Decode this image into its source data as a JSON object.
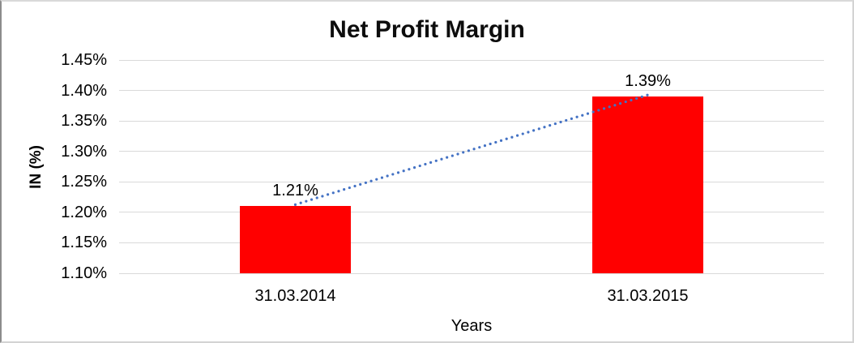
{
  "chart_data": {
    "type": "bar",
    "title": "Net Profit Margin",
    "xlabel": "Years",
    "ylabel": "IN (%)",
    "categories": [
      "31.03.2014",
      "31.03.2015"
    ],
    "series": [
      {
        "name": "Net Profit Margin",
        "values": [
          1.21,
          1.39
        ]
      }
    ],
    "data_labels": [
      "1.21%",
      "1.39%"
    ],
    "y_ticks": [
      "1.45%",
      "1.40%",
      "1.35%",
      "1.30%",
      "1.25%",
      "1.20%",
      "1.15%",
      "1.10%"
    ],
    "ylim": [
      1.1,
      1.45
    ],
    "y_step": 0.05,
    "grid": true,
    "legend": "none",
    "bar_color": "#ff0000",
    "gridline_color": "#d9d9d9",
    "trendline": {
      "type": "linear",
      "style": "dotted",
      "color": "#4472c4"
    }
  }
}
